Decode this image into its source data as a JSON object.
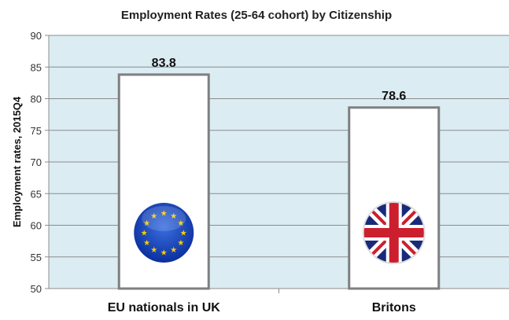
{
  "chart_data": {
    "type": "bar",
    "title": "Employment Rates (25-64 cohort) by Citizenship",
    "xlabel": "",
    "ylabel": "Employment rates, 2015Q4",
    "ylim": [
      50,
      90
    ],
    "yticks": [
      50,
      55,
      60,
      65,
      70,
      75,
      80,
      85,
      90
    ],
    "grid": true,
    "categories": [
      "EU nationals in UK",
      "Britons"
    ],
    "values": [
      83.8,
      78.6
    ],
    "data_labels": [
      "83.8",
      "78.6"
    ],
    "icons": [
      "eu-flag-icon",
      "uk-flag-icon"
    ],
    "colors": {
      "plot_bg": "#dbecf3",
      "bar_fill": "#ffffff",
      "bar_border": "#7f7f7f",
      "grid": "#8c8c8c"
    }
  }
}
